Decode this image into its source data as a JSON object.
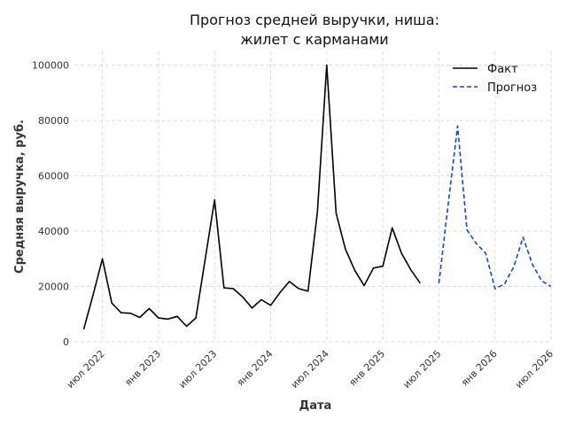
{
  "chart_data": {
    "type": "line",
    "title_lines": [
      "Прогноз средней выручки, ниша:",
      "жилет с карманами"
    ],
    "xlabel": "Дата",
    "ylabel": "Средняя выручка, руб.",
    "ylim": [
      0,
      105000
    ],
    "yticks": [
      0,
      20000,
      40000,
      60000,
      80000,
      100000
    ],
    "ytick_labels": [
      "0",
      "20000",
      "40000",
      "60000",
      "80000",
      "100000"
    ],
    "xlim": [
      "2022-04",
      "2026-07"
    ],
    "xticks": [
      "2022-07",
      "2023-01",
      "2023-07",
      "2024-01",
      "2024-07",
      "2025-01",
      "2025-07",
      "2026-01",
      "2026-07"
    ],
    "xtick_labels": [
      "июл 2022",
      "янв 2023",
      "июл 2023",
      "янв 2024",
      "июл 2024",
      "янв 2025",
      "июл 2025",
      "янв 2026",
      "июл 2026"
    ],
    "grid": true,
    "legend_position": "top-right",
    "colors": {
      "actual": "#000000",
      "forecast": "#1146d4"
    },
    "series": [
      {
        "name": "Факт",
        "style": "solid",
        "x": [
          "2022-05",
          "2022-06",
          "2022-07",
          "2022-08",
          "2022-09",
          "2022-10",
          "2022-11",
          "2022-12",
          "2023-01",
          "2023-02",
          "2023-03",
          "2023-04",
          "2023-05",
          "2023-06",
          "2023-07",
          "2023-08",
          "2023-09",
          "2023-10",
          "2023-11",
          "2023-12",
          "2024-01",
          "2024-02",
          "2024-03",
          "2024-04",
          "2024-05",
          "2024-06",
          "2024-07",
          "2024-08",
          "2024-09",
          "2024-10",
          "2024-11",
          "2024-12",
          "2025-01",
          "2025-02",
          "2025-03",
          "2025-04",
          "2025-05",
          "2025-06",
          "2025-07"
        ],
        "values": [
          4500,
          17000,
          30000,
          14000,
          10500,
          10300,
          8800,
          12000,
          8600,
          8200,
          9200,
          5600,
          8600,
          30000,
          51300,
          19500,
          19200,
          16200,
          12200,
          15200,
          13200,
          17800,
          21800,
          19200,
          18300,
          47000,
          100000,
          46500,
          33500,
          25800,
          20300,
          26700,
          27300,
          41200,
          32000,
          26000,
          21200,
          null,
          null
        ]
      },
      {
        "name": "Прогноз",
        "style": "dashed",
        "x": [
          "2025-07",
          "2025-08",
          "2025-09",
          "2025-10",
          "2025-11",
          "2025-12",
          "2026-01",
          "2026-02",
          "2026-03",
          "2026-04",
          "2026-05",
          "2026-06",
          "2026-07"
        ],
        "values": [
          21200,
          50000,
          78000,
          40500,
          35500,
          32000,
          19200,
          20800,
          27000,
          37800,
          28000,
          22000,
          20000
        ]
      }
    ]
  }
}
